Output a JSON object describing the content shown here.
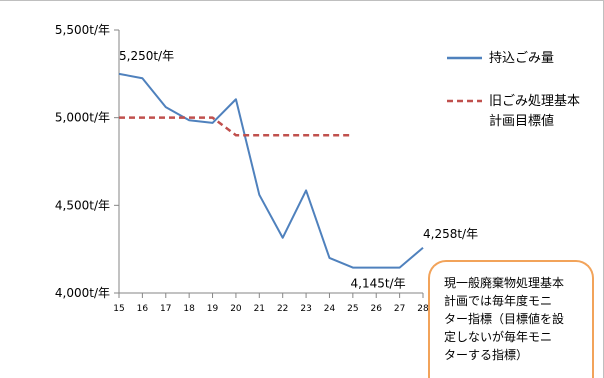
{
  "chart_data": {
    "type": "line",
    "x": [
      15,
      16,
      17,
      18,
      19,
      20,
      21,
      22,
      23,
      24,
      25,
      26,
      27,
      28
    ],
    "xticks": [
      "15",
      "16",
      "17",
      "18",
      "19",
      "20",
      "21",
      "22",
      "23",
      "24",
      "25",
      "26",
      "27",
      "28"
    ],
    "yticks": [
      "5,500t/年",
      "5,000t/年",
      "4,500t/年",
      "4,000t/年"
    ],
    "ytick_values": [
      5500,
      5000,
      4500,
      4000
    ],
    "ylim": [
      4000,
      5500
    ],
    "xlim": [
      15,
      28
    ],
    "grid": false,
    "legend_position": "right",
    "series": [
      {
        "name": "持込ごみ量",
        "color": "#4f81bd",
        "style": "solid",
        "x": [
          15,
          16,
          17,
          18,
          19,
          20,
          21,
          22,
          23,
          24,
          25,
          26,
          27,
          28
        ],
        "values": [
          5250,
          5225,
          5060,
          4985,
          4970,
          5105,
          4560,
          4315,
          4585,
          4200,
          4145,
          4145,
          4145,
          4258
        ]
      },
      {
        "name": "旧ごみ処理基本計画目標値",
        "legend_lines": [
          "旧ごみ処理基本",
          "計画目標値"
        ],
        "color": "#c0504d",
        "style": "dashed",
        "x": [
          15,
          16,
          17,
          18,
          19,
          20,
          21,
          22,
          23,
          24,
          25
        ],
        "values": [
          5000,
          5000,
          5000,
          5000,
          5000,
          4900,
          4900,
          4900,
          4900,
          4900,
          4900
        ]
      }
    ],
    "annotations": [
      {
        "text": "5,250t/年",
        "x": 15,
        "y": 5250
      },
      {
        "text": "4,145t/年",
        "x": 27,
        "y": 4145
      },
      {
        "text": "4,258t/年",
        "x": 28,
        "y": 4258
      }
    ]
  },
  "callout": {
    "text": "現一般廃棄物処理基本\n計画では毎年度モニ\nター指標（目標値を設\n定しないが毎年モニ\nターする指標）"
  }
}
